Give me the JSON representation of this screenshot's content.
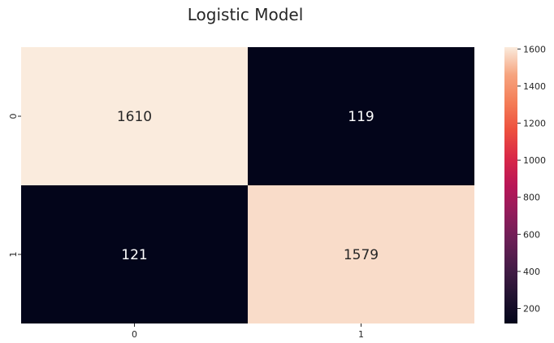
{
  "chart_data": {
    "type": "heatmap",
    "title": "Logistic Model",
    "x_categories": [
      "0",
      "1"
    ],
    "y_categories": [
      "0",
      "1"
    ],
    "values": [
      [
        1610,
        119
      ],
      [
        121,
        1579
      ]
    ],
    "colorbar": {
      "min": 119,
      "max": 1610,
      "ticks": [
        200,
        400,
        600,
        800,
        1000,
        1200,
        1400,
        1600
      ],
      "colormap": "rocket"
    },
    "annotation_colors": {
      "dark_text": "#262626",
      "light_text": "#ffffff"
    }
  }
}
